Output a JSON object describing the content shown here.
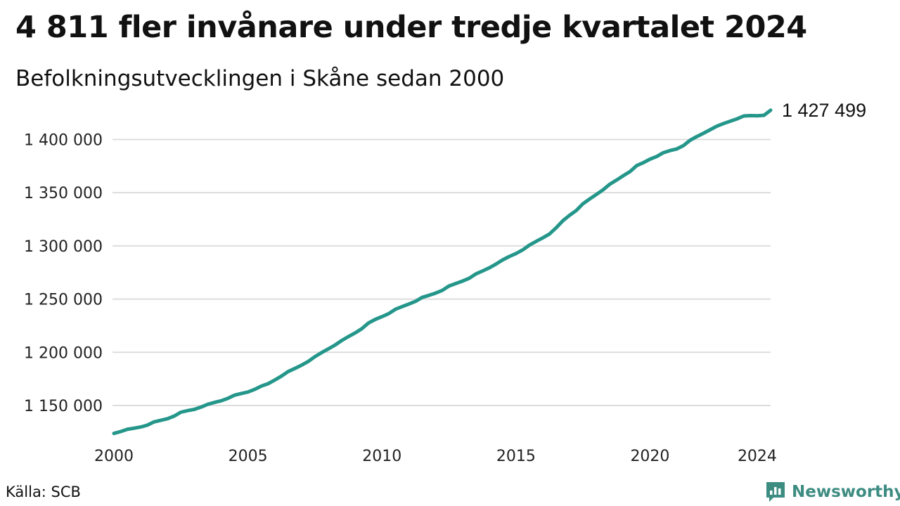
{
  "header": {
    "title": "4 811 fler invånare under tredje kvartalet 2024",
    "subtitle": "Befolkningsutvecklingen i Skåne sedan 2000"
  },
  "footer": {
    "source": "Källa: SCB",
    "brand": "Newsworthy",
    "brand_icon": "newsworthy-logo-icon"
  },
  "colors": {
    "line": "#24968a",
    "grid": "#dddddd",
    "brand": "#3d8c82"
  },
  "chart_data": {
    "type": "line",
    "title": "4 811 fler invånare under tredje kvartalet 2024",
    "subtitle": "Befolkningsutvecklingen i Skåne sedan 2000",
    "xlabel": "",
    "ylabel": "",
    "grid": true,
    "legend": "none",
    "xlim": [
      2000,
      2024.5
    ],
    "ylim": [
      1115000,
      1432000
    ],
    "x_ticks": [
      2000,
      2005,
      2010,
      2015,
      2020,
      2024
    ],
    "x_tick_labels": [
      "2000",
      "2005",
      "2010",
      "2015",
      "2020",
      "2024"
    ],
    "y_ticks": [
      1150000,
      1200000,
      1250000,
      1300000,
      1350000,
      1400000
    ],
    "y_tick_labels": [
      "1 150 000",
      "1 200 000",
      "1 250 000",
      "1 300 000",
      "1 350 000",
      "1 400 000"
    ],
    "end_label": "1 427 499",
    "series": [
      {
        "x": [
          2000.0,
          2000.25,
          2000.5,
          2000.75,
          2001.0,
          2001.25,
          2001.5,
          2001.75,
          2002.0,
          2002.25,
          2002.5,
          2002.75,
          2003.0,
          2003.25,
          2003.5,
          2003.75,
          2004.0,
          2004.25,
          2004.5,
          2004.75,
          2005.0,
          2005.25,
          2005.5,
          2005.75,
          2006.0,
          2006.25,
          2006.5,
          2006.75,
          2007.0,
          2007.25,
          2007.5,
          2007.75,
          2008.0,
          2008.25,
          2008.5,
          2008.75,
          2009.0,
          2009.25,
          2009.5,
          2009.75,
          2010.0,
          2010.25,
          2010.5,
          2010.75,
          2011.0,
          2011.25,
          2011.5,
          2011.75,
          2012.0,
          2012.25,
          2012.5,
          2012.75,
          2013.0,
          2013.25,
          2013.5,
          2013.75,
          2014.0,
          2014.25,
          2014.5,
          2014.75,
          2015.0,
          2015.25,
          2015.5,
          2015.75,
          2016.0,
          2016.25,
          2016.5,
          2016.75,
          2017.0,
          2017.25,
          2017.5,
          2017.75,
          2018.0,
          2018.25,
          2018.5,
          2018.75,
          2019.0,
          2019.25,
          2019.5,
          2019.75,
          2020.0,
          2020.25,
          2020.5,
          2020.75,
          2021.0,
          2021.25,
          2021.5,
          2021.75,
          2022.0,
          2022.25,
          2022.5,
          2022.75,
          2023.0,
          2023.25,
          2023.5,
          2023.75,
          2024.0,
          2024.25,
          2024.5
        ],
        "values": [
          1123800,
          1125500,
          1127600,
          1128700,
          1129800,
          1131600,
          1134600,
          1136100,
          1137600,
          1140100,
          1143700,
          1145200,
          1146400,
          1148500,
          1151100,
          1152900,
          1154400,
          1156700,
          1159700,
          1161300,
          1162700,
          1165100,
          1168200,
          1170500,
          1173900,
          1177600,
          1181900,
          1184800,
          1187900,
          1191400,
          1195900,
          1199700,
          1203200,
          1206800,
          1211100,
          1214800,
          1218200,
          1222200,
          1227600,
          1230900,
          1233500,
          1236300,
          1240400,
          1242900,
          1245300,
          1247900,
          1251600,
          1253500,
          1255600,
          1258200,
          1262300,
          1264600,
          1266900,
          1269500,
          1273600,
          1276400,
          1279300,
          1282800,
          1286800,
          1290000,
          1292800,
          1296200,
          1300700,
          1304200,
          1307600,
          1311200,
          1317000,
          1323700,
          1328800,
          1333300,
          1339600,
          1344100,
          1348300,
          1352700,
          1358000,
          1361800,
          1365900,
          1369800,
          1375400,
          1378200,
          1381500,
          1384000,
          1387600,
          1389600,
          1391100,
          1394300,
          1399300,
          1402800,
          1405900,
          1409200,
          1412600,
          1415000,
          1417200,
          1419400,
          1422100,
          1422400,
          1422300,
          1422700,
          1427499
        ]
      }
    ]
  }
}
